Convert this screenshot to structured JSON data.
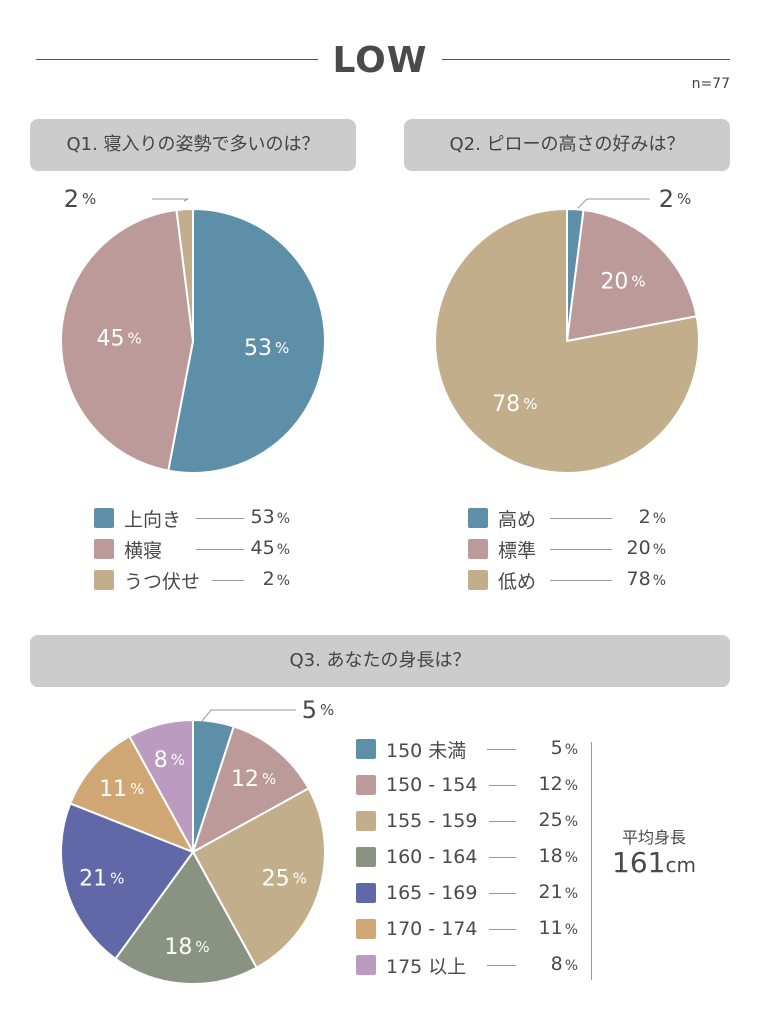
{
  "header": {
    "title": "LOW",
    "sample_size": "n=77"
  },
  "chart_data": [
    {
      "type": "pie",
      "title": "Q1.  寝入りの姿勢で多いのは？",
      "unit": "%",
      "start_angle_deg": 0,
      "direction": "clockwise",
      "slices": [
        {
          "label": "上向き",
          "value": 53,
          "color": "#5e8fa9"
        },
        {
          "label": "横寝",
          "value": 45,
          "color": "#bd9a9a"
        },
        {
          "label": "うつ伏せ",
          "value": 2,
          "color": "#c2ae8a"
        }
      ]
    },
    {
      "type": "pie",
      "title": "Q2.  ピローの高さの好みは？",
      "unit": "%",
      "start_angle_deg": 0,
      "direction": "clockwise",
      "slices": [
        {
          "label": "高め",
          "value": 2,
          "color": "#5e8fa9"
        },
        {
          "label": "標準",
          "value": 20,
          "color": "#bd9a9a"
        },
        {
          "label": "低め",
          "value": 78,
          "color": "#c2ae8a"
        }
      ]
    },
    {
      "type": "pie",
      "title": "Q3.  あなたの身長は？",
      "unit": "%",
      "start_angle_deg": 0,
      "direction": "clockwise",
      "slices": [
        {
          "label": "150 未満",
          "value": 5,
          "color": "#5e8fa9"
        },
        {
          "label": "150 - 154",
          "value": 12,
          "color": "#bd9a9a"
        },
        {
          "label": "155 - 159",
          "value": 25,
          "color": "#c2ae8a"
        },
        {
          "label": "160 - 164",
          "value": 18,
          "color": "#8a9381"
        },
        {
          "label": "165 - 169",
          "value": 21,
          "color": "#6068a8"
        },
        {
          "label": "170 - 174",
          "value": 11,
          "color": "#d0a774"
        },
        {
          "label": "175 以上",
          "value": 8,
          "color": "#bb9bc0"
        }
      ],
      "summary": {
        "label": "平均身長",
        "value": "161",
        "unit": "cm"
      }
    }
  ]
}
